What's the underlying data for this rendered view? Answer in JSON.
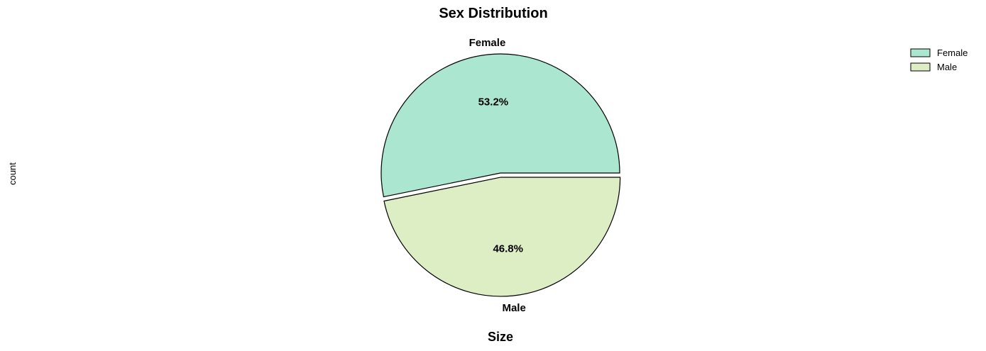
{
  "chart_data": {
    "type": "pie",
    "title": "Sex Distribution",
    "ylabel": "count",
    "xlabel": "Size",
    "categories": [
      "Female",
      "Male"
    ],
    "values": [
      53.2,
      46.8
    ],
    "value_labels": [
      "53.2%",
      "46.8%"
    ],
    "colors": [
      "#aae6d0",
      "#ddedc4"
    ],
    "edge_color": "#000000",
    "exploded": [
      false,
      true
    ],
    "start_angle_deg": 0,
    "direction": "counterclockwise",
    "legend": {
      "placement": "top-right",
      "entries": [
        "Female",
        "Male"
      ]
    }
  }
}
